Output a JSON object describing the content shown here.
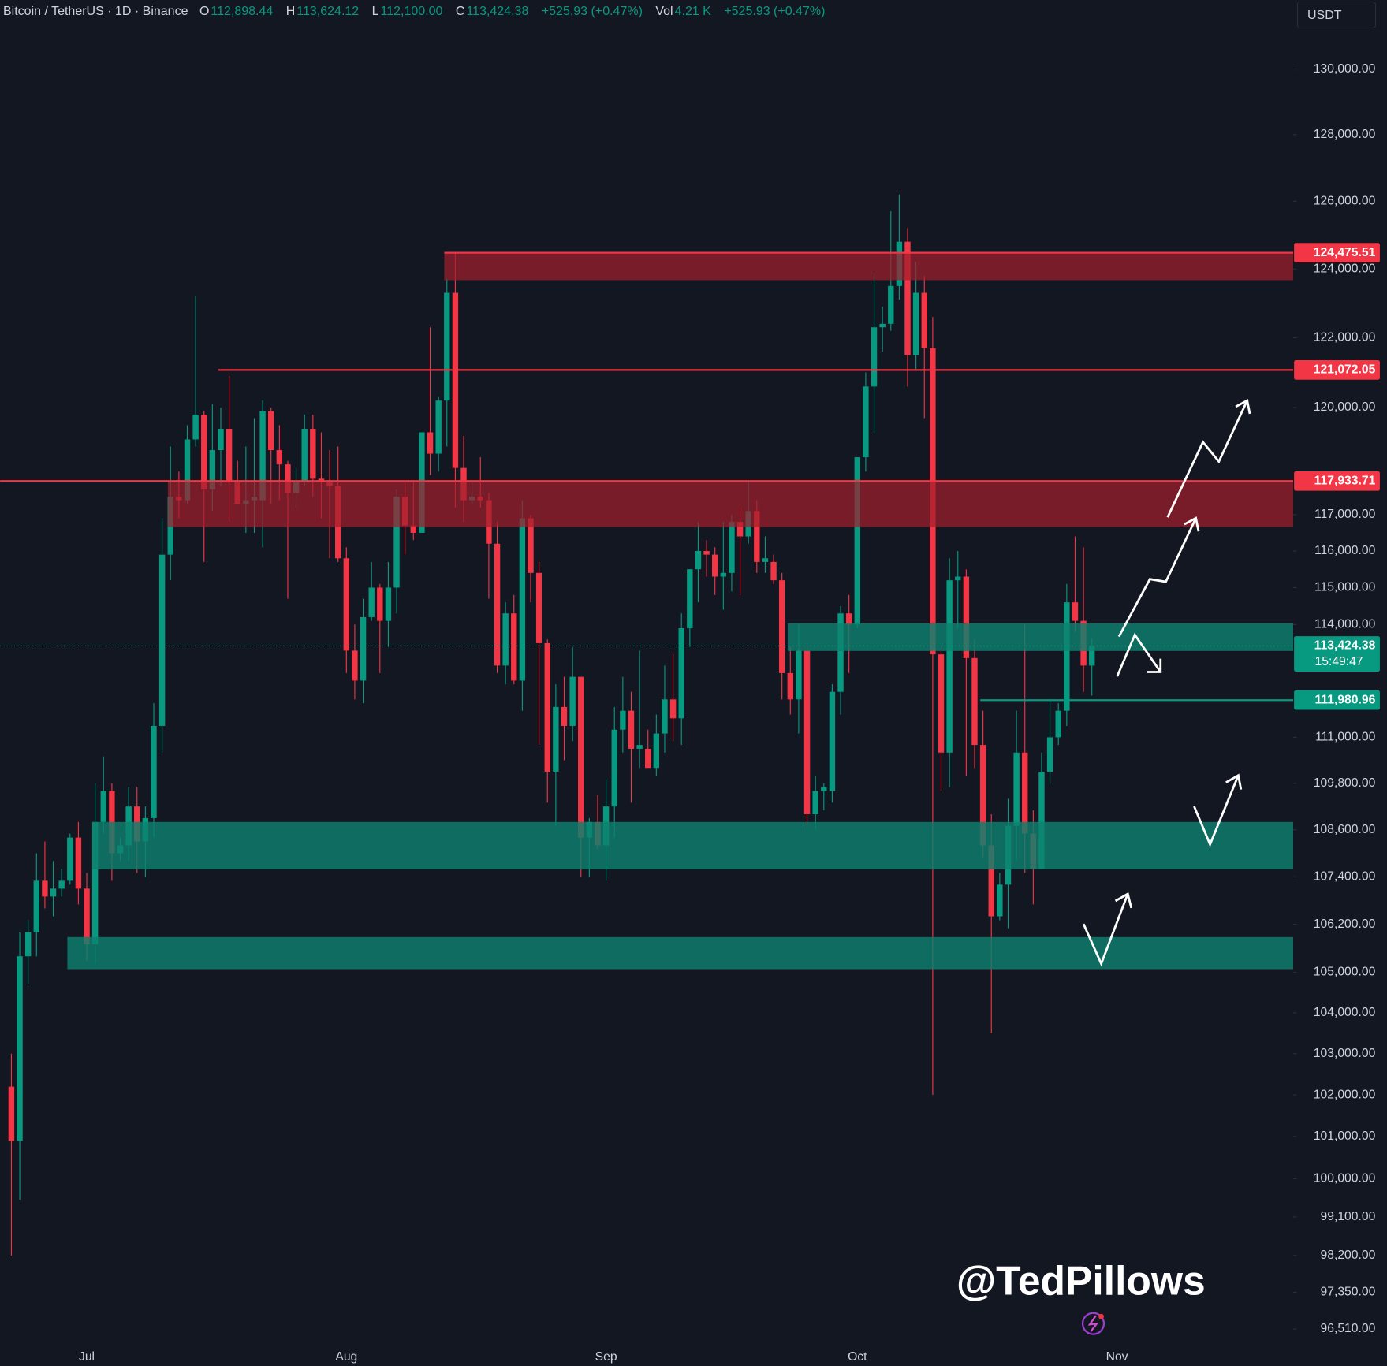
{
  "header": {
    "symbol": "Bitcoin / TetherUS · 1D · Binance",
    "ohlc": [
      {
        "key": "O",
        "value": "112,898.44"
      },
      {
        "key": "H",
        "value": "113,624.12"
      },
      {
        "key": "L",
        "value": "112,100.00"
      },
      {
        "key": "C",
        "value": "113,424.38"
      }
    ],
    "change": "+525.93 (+0.47%)",
    "vol_key": "Vol",
    "vol": "4.21 K",
    "vol_change": "+525.93 (+0.47%)"
  },
  "currency": "USDT",
  "watermark": "@TedPillows",
  "chart_data": {
    "type": "candlestick",
    "log_y": true,
    "grid": false,
    "up_color": "#089981",
    "down_color": "#f23645",
    "categories": [
      null,
      null,
      null,
      null,
      null,
      null,
      null,
      null,
      null,
      "Jul",
      null,
      null,
      null,
      null,
      null,
      null,
      null,
      null,
      null,
      null,
      null,
      null,
      null,
      null,
      null,
      null,
      null,
      null,
      null,
      null,
      null,
      null,
      null,
      null,
      null,
      null,
      null,
      null,
      null,
      null,
      "Aug",
      null,
      null,
      null,
      null,
      null,
      null,
      null,
      null,
      null,
      null,
      null,
      null,
      null,
      null,
      null,
      null,
      null,
      null,
      null,
      null,
      null,
      null,
      null,
      null,
      null,
      null,
      null,
      null,
      null,
      null,
      "Sep",
      null,
      null,
      null,
      null,
      null,
      null,
      null,
      null,
      null,
      null,
      null,
      null,
      null,
      null,
      null,
      null,
      null,
      null,
      null,
      null,
      null,
      null,
      null,
      null,
      null,
      null,
      null,
      null,
      null,
      "Oct",
      null,
      null,
      null,
      null,
      null,
      null,
      null,
      null,
      null,
      null,
      null,
      null,
      null,
      null,
      null,
      null,
      null,
      null,
      null,
      null,
      null,
      null,
      null,
      null,
      null,
      null,
      null,
      null,
      null,
      null,
      "Nov"
    ],
    "open": [
      102200,
      100900,
      105400,
      106000,
      107300,
      106900,
      107100,
      107300,
      108400,
      107100,
      105700,
      108800,
      109600,
      108000,
      108200,
      109200,
      108300,
      108900,
      111300,
      115900,
      117500,
      117400,
      119100,
      119800,
      117700,
      118800,
      119400,
      117900,
      117300,
      117400,
      117400,
      119900,
      118800,
      118400,
      117600,
      117900,
      119400,
      118000,
      117900,
      117800,
      115800,
      113300,
      112500,
      114200,
      115000,
      114100,
      115000,
      117500,
      116700,
      116500,
      119300,
      118700,
      120200,
      123300,
      118300,
      117400,
      117500,
      117400,
      116200,
      112900,
      114300,
      112500,
      116900,
      115400,
      113500,
      110100,
      111800,
      111300,
      112600,
      108400,
      108800,
      108200,
      109200,
      111200,
      111700,
      110700,
      110700,
      110200,
      111100,
      112000,
      111500,
      113900,
      115500,
      116000,
      115900,
      115300,
      115400,
      116800,
      116400,
      117100,
      115700,
      115700,
      115200,
      112700,
      112000,
      113300,
      109000,
      109600,
      109600,
      112200,
      114300,
      114000,
      118600,
      120600,
      122300,
      122400,
      123500,
      124800,
      121500,
      123300,
      121700,
      113200,
      110600,
      115200,
      115300,
      113100,
      110800,
      108200,
      106400,
      107200,
      108700,
      110600,
      108500,
      107600,
      110100,
      111000,
      111700,
      114600,
      114100,
      112898.44,
      null,
      null,
      null
    ],
    "high": [
      103000,
      106000,
      106300,
      108000,
      108300,
      107800,
      107600,
      108500,
      108800,
      107500,
      109800,
      110500,
      109800,
      108400,
      109700,
      109700,
      109200,
      111900,
      116900,
      118900,
      118200,
      119500,
      123200,
      119900,
      120100,
      120000,
      120900,
      118500,
      118900,
      119700,
      120200,
      120000,
      119500,
      118500,
      118300,
      119800,
      119800,
      119300,
      118800,
      118900,
      116100,
      114000,
      114700,
      115700,
      115100,
      115700,
      117700,
      117900,
      117900,
      119300,
      122300,
      120300,
      123700,
      124500,
      119200,
      117900,
      118600,
      117600,
      116800,
      114600,
      114800,
      117400,
      117000,
      115700,
      113600,
      112400,
      112600,
      113400,
      112600,
      108900,
      109500,
      109900,
      111800,
      112600,
      112200,
      113300,
      111200,
      111600,
      112900,
      113200,
      114300,
      115500,
      116800,
      116300,
      116100,
      116800,
      117000,
      117200,
      117900,
      117400,
      116400,
      115900,
      115400,
      113400,
      114000,
      113500,
      110000,
      109800,
      112400,
      114500,
      114800,
      118600,
      121000,
      123900,
      122900,
      125700,
      126200,
      125200,
      124200,
      123800,
      122600,
      113400,
      115800,
      116000,
      115500,
      113600,
      111700,
      109000,
      107500,
      109400,
      111700,
      114000,
      109100,
      110600,
      112000,
      111900,
      115100,
      116400,
      116100,
      113624.12,
      null,
      null,
      null
    ],
    "low": [
      98200,
      99500,
      104700,
      105400,
      106600,
      106400,
      106900,
      107200,
      106700,
      105300,
      105200,
      108500,
      107300,
      107800,
      107800,
      107500,
      107400,
      108400,
      110600,
      115200,
      116900,
      117300,
      118900,
      115700,
      117100,
      117800,
      116800,
      117300,
      116500,
      116500,
      116100,
      117300,
      117400,
      114700,
      117200,
      117800,
      117500,
      116900,
      115800,
      115700,
      112700,
      112000,
      111900,
      114100,
      112700,
      113400,
      114300,
      115900,
      116300,
      116500,
      118100,
      118200,
      118900,
      117200,
      116800,
      117300,
      117200,
      114700,
      112700,
      112400,
      112400,
      111700,
      114600,
      110800,
      109300,
      108700,
      110400,
      110900,
      107400,
      107400,
      108100,
      107300,
      108400,
      110600,
      109300,
      110200,
      110200,
      110000,
      110600,
      110900,
      110800,
      113400,
      114600,
      115300,
      114800,
      114400,
      114900,
      114800,
      116200,
      115400,
      115400,
      115100,
      112000,
      111600,
      111100,
      108600,
      108600,
      109100,
      109300,
      111600,
      112700,
      113900,
      118200,
      119300,
      121600,
      122200,
      123100,
      120600,
      121100,
      119700,
      102000,
      109600,
      109700,
      113900,
      110000,
      110200,
      107900,
      103500,
      106300,
      106100,
      107800,
      107500,
      106700,
      107600,
      109800,
      110800,
      111300,
      113800,
      112200,
      112100,
      null,
      null,
      null
    ],
    "close": [
      100900,
      105400,
      106000,
      107300,
      106900,
      107100,
      107300,
      108400,
      107100,
      105700,
      108800,
      109600,
      108000,
      108200,
      109200,
      108300,
      108900,
      111300,
      115900,
      117500,
      117400,
      119100,
      119800,
      117700,
      118800,
      119400,
      117900,
      117300,
      117400,
      117500,
      119900,
      118800,
      118400,
      117600,
      117900,
      119400,
      118000,
      117900,
      117800,
      115800,
      113300,
      112500,
      114200,
      115000,
      114100,
      115000,
      117500,
      116700,
      116500,
      119300,
      118700,
      120200,
      123300,
      118300,
      117400,
      117500,
      117400,
      116200,
      112900,
      114300,
      112500,
      116900,
      115400,
      113500,
      110100,
      111800,
      111300,
      112600,
      108400,
      108800,
      108200,
      109200,
      111200,
      111700,
      110700,
      110800,
      110200,
      111100,
      112000,
      111500,
      113900,
      115500,
      116000,
      115900,
      115300,
      115400,
      116800,
      116400,
      117100,
      115700,
      115800,
      115200,
      112700,
      112000,
      113300,
      109000,
      109600,
      109700,
      112200,
      114300,
      114000,
      118600,
      120600,
      122300,
      122400,
      123500,
      124800,
      121500,
      123300,
      121700,
      113200,
      110600,
      115200,
      115300,
      113100,
      110800,
      108200,
      106400,
      107200,
      108700,
      110600,
      108500,
      107600,
      110100,
      111000,
      111700,
      114600,
      114100,
      112900,
      113424.38,
      null,
      null,
      null
    ],
    "ylim": [
      96210,
      132140
    ],
    "yticks": [
      {
        "value": 130000,
        "label": "130,000.00"
      },
      {
        "value": 128000,
        "label": "128,000.00"
      },
      {
        "value": 126000,
        "label": "126,000.00"
      },
      {
        "value": 124000,
        "label": "124,000.00"
      },
      {
        "value": 122000,
        "label": "122,000.00"
      },
      {
        "value": 120000,
        "label": "120,000.00"
      },
      {
        "value": 117000,
        "label": "117,000.00"
      },
      {
        "value": 116000,
        "label": "116,000.00"
      },
      {
        "value": 115000,
        "label": "115,000.00"
      },
      {
        "value": 114000,
        "label": "114,000.00"
      },
      {
        "value": 111000,
        "label": "111,000.00"
      },
      {
        "value": 109800,
        "label": "109,800.00"
      },
      {
        "value": 108600,
        "label": "108,600.00"
      },
      {
        "value": 107400,
        "label": "107,400.00"
      },
      {
        "value": 106200,
        "label": "106,200.00"
      },
      {
        "value": 105000,
        "label": "105,000.00"
      },
      {
        "value": 104000,
        "label": "104,000.00"
      },
      {
        "value": 103000,
        "label": "103,000.00"
      },
      {
        "value": 102000,
        "label": "102,000.00"
      },
      {
        "value": 101000,
        "label": "101,000.00"
      },
      {
        "value": 100000,
        "label": "100,000.00"
      },
      {
        "value": 99100,
        "label": "99,100.00"
      },
      {
        "value": 98200,
        "label": "98,200.00"
      },
      {
        "value": 97350,
        "label": "97,350.00"
      },
      {
        "value": 96510,
        "label": "96,510.00"
      }
    ],
    "zones": [
      {
        "high": 124475.51,
        "low": 123670,
        "x0": 52,
        "color": "rgba(160,30,45,0.72)"
      },
      {
        "high": 117933.71,
        "low": 116660,
        "x0": 19,
        "color": "rgba(160,30,45,0.72)"
      },
      {
        "high": 114030,
        "low": 113290,
        "x0": 93,
        "color": "rgba(14,128,110,0.82)"
      },
      {
        "high": 108800,
        "low": 107590,
        "x0": 10,
        "color": "rgba(14,128,110,0.82)"
      },
      {
        "high": 105880,
        "low": 105080,
        "x0": 7,
        "color": "rgba(14,128,110,0.82)"
      }
    ],
    "levels": [
      {
        "value": 124475.51,
        "label": "124,475.51",
        "x0": 52,
        "color": "#f23645"
      },
      {
        "value": 121072.05,
        "label": "121,072.05",
        "x0": 25,
        "color": "#f23645"
      },
      {
        "value": 117933.71,
        "label": "117,933.71",
        "x0": 0,
        "color": "#f23645"
      },
      {
        "value": 111980.96,
        "label": "111,980.96",
        "x0": 116,
        "color": "#089981"
      }
    ],
    "last_price": {
      "value": 113424.38,
      "label": "113,424.38",
      "countdown": "15:49:47",
      "color": "#089981"
    }
  }
}
